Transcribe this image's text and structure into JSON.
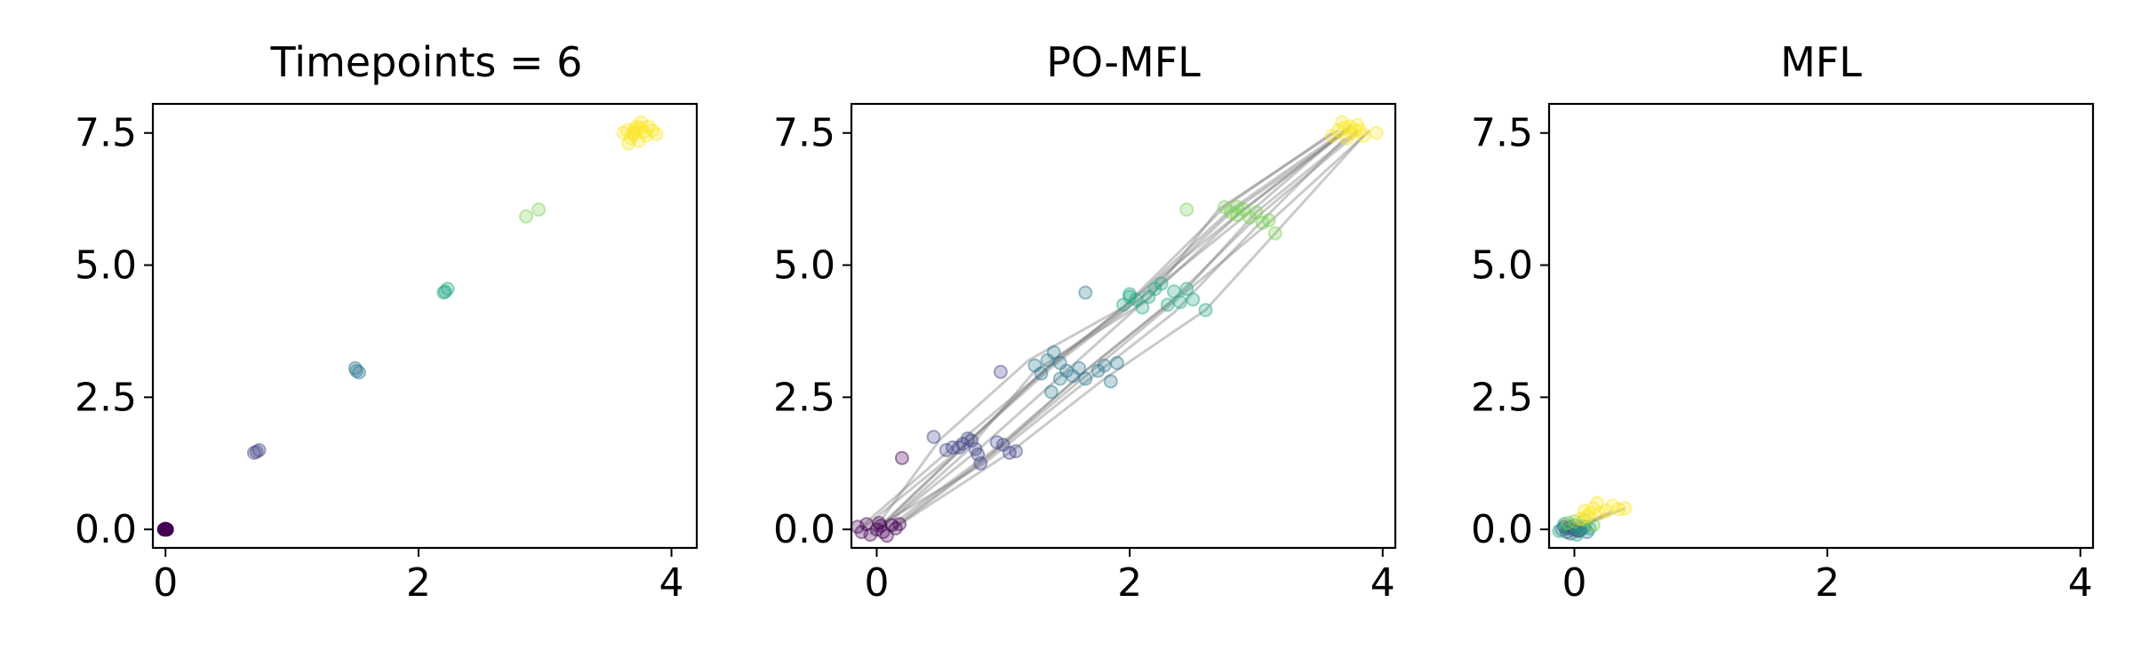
{
  "figure": {
    "background": "#ffffff",
    "trajectory_color": "#808080",
    "timepoint_colors": [
      "#440154",
      "#414487",
      "#2a788e",
      "#22a884",
      "#7ad151",
      "#fde725"
    ]
  },
  "chart_data": [
    {
      "type": "scatter",
      "title": "Timepoints = 6",
      "xlim": [
        -0.1,
        4.2
      ],
      "ylim": [
        -0.35,
        8.05
      ],
      "xticks": [
        0,
        2,
        4
      ],
      "xtick_labels": [
        "0",
        "2",
        "4"
      ],
      "yticks": [
        0.0,
        2.5,
        5.0,
        7.5
      ],
      "ytick_labels": [
        "0.0",
        "2.5",
        "5.0",
        "7.5"
      ],
      "grid": false,
      "series": [
        {
          "timepoint": 0,
          "points": [
            [
              0.0,
              0.0
            ],
            [
              0.01,
              0.0
            ],
            [
              0.0,
              0.01
            ],
            [
              -0.01,
              0.0
            ]
          ]
        },
        {
          "timepoint": 1,
          "points": [
            [
              0.72,
              1.47
            ],
            [
              0.74,
              1.5
            ],
            [
              0.7,
              1.45
            ]
          ]
        },
        {
          "timepoint": 2,
          "points": [
            [
              1.5,
              3.05
            ],
            [
              1.53,
              2.97
            ],
            [
              1.51,
              3.0
            ]
          ]
        },
        {
          "timepoint": 3,
          "points": [
            [
              2.2,
              4.48
            ],
            [
              2.23,
              4.55
            ],
            [
              2.21,
              4.5
            ]
          ]
        },
        {
          "timepoint": 4,
          "points": [
            [
              2.85,
              5.92
            ],
            [
              2.95,
              6.05
            ]
          ]
        },
        {
          "timepoint": 5,
          "points": [
            [
              3.65,
              7.55
            ],
            [
              3.7,
              7.5
            ],
            [
              3.75,
              7.6
            ],
            [
              3.8,
              7.45
            ],
            [
              3.68,
              7.4
            ],
            [
              3.72,
              7.62
            ],
            [
              3.78,
              7.52
            ],
            [
              3.85,
              7.55
            ],
            [
              3.62,
              7.5
            ],
            [
              3.74,
              7.35
            ],
            [
              3.82,
              7.62
            ],
            [
              3.7,
              7.48
            ],
            [
              3.66,
              7.3
            ],
            [
              3.88,
              7.48
            ],
            [
              3.76,
              7.7
            ],
            [
              3.71,
              7.56
            ]
          ]
        }
      ],
      "trajectories": []
    },
    {
      "type": "scatter",
      "title": "PO-MFL",
      "xlim": [
        -0.2,
        4.1
      ],
      "ylim": [
        -0.35,
        8.05
      ],
      "xticks": [
        0,
        2,
        4
      ],
      "xtick_labels": [
        "0",
        "2",
        "4"
      ],
      "yticks": [
        0.0,
        2.5,
        5.0,
        7.5
      ],
      "ytick_labels": [
        "0.0",
        "2.5",
        "5.0",
        "7.5"
      ],
      "grid": false,
      "series": [
        {
          "timepoint": 0,
          "points": [
            [
              -0.15,
              0.05
            ],
            [
              -0.08,
              0.1
            ],
            [
              0.0,
              0.0
            ],
            [
              0.05,
              -0.05
            ],
            [
              0.12,
              0.08
            ],
            [
              0.18,
              0.1
            ],
            [
              -0.05,
              -0.1
            ],
            [
              0.02,
              0.12
            ],
            [
              0.08,
              -0.12
            ],
            [
              -0.12,
              -0.05
            ],
            [
              0.15,
              0.02
            ],
            [
              0.2,
              1.35
            ],
            [
              0.03,
              0.07
            ]
          ]
        },
        {
          "timepoint": 1,
          "points": [
            [
              0.45,
              1.75
            ],
            [
              0.55,
              1.5
            ],
            [
              0.6,
              1.55
            ],
            [
              0.68,
              1.62
            ],
            [
              0.72,
              1.72
            ],
            [
              0.78,
              1.52
            ],
            [
              0.8,
              1.42
            ],
            [
              0.82,
              1.25
            ],
            [
              0.95,
              1.65
            ],
            [
              1.0,
              1.6
            ],
            [
              1.05,
              1.45
            ],
            [
              1.1,
              1.48
            ],
            [
              0.65,
              1.55
            ],
            [
              0.75,
              1.68
            ],
            [
              0.98,
              2.98
            ]
          ]
        },
        {
          "timepoint": 2,
          "points": [
            [
              1.25,
              3.1
            ],
            [
              1.3,
              2.95
            ],
            [
              1.35,
              3.2
            ],
            [
              1.4,
              3.35
            ],
            [
              1.45,
              2.85
            ],
            [
              1.5,
              3.0
            ],
            [
              1.55,
              2.9
            ],
            [
              1.6,
              3.05
            ],
            [
              1.65,
              2.85
            ],
            [
              1.75,
              3.0
            ],
            [
              1.8,
              3.1
            ],
            [
              1.85,
              2.8
            ],
            [
              1.9,
              3.15
            ],
            [
              1.38,
              2.6
            ],
            [
              1.45,
              3.15
            ],
            [
              1.65,
              4.48
            ]
          ]
        },
        {
          "timepoint": 3,
          "points": [
            [
              1.95,
              4.25
            ],
            [
              2.0,
              4.45
            ],
            [
              2.05,
              4.35
            ],
            [
              2.1,
              4.2
            ],
            [
              2.15,
              4.4
            ],
            [
              2.2,
              4.55
            ],
            [
              2.25,
              4.65
            ],
            [
              2.3,
              4.25
            ],
            [
              2.35,
              4.5
            ],
            [
              2.4,
              4.3
            ],
            [
              2.45,
              4.55
            ],
            [
              2.5,
              4.35
            ],
            [
              2.6,
              4.15
            ],
            [
              2.0,
              4.4
            ]
          ]
        },
        {
          "timepoint": 4,
          "points": [
            [
              2.45,
              6.05
            ],
            [
              2.75,
              6.1
            ],
            [
              2.8,
              6.0
            ],
            [
              2.85,
              5.95
            ],
            [
              2.9,
              6.05
            ],
            [
              2.95,
              5.9
            ],
            [
              3.0,
              6.0
            ],
            [
              3.05,
              5.8
            ],
            [
              3.1,
              5.85
            ],
            [
              3.15,
              5.6
            ],
            [
              2.85,
              6.1
            ]
          ]
        },
        {
          "timepoint": 5,
          "points": [
            [
              3.6,
              7.45
            ],
            [
              3.65,
              7.55
            ],
            [
              3.7,
              7.6
            ],
            [
              3.75,
              7.5
            ],
            [
              3.8,
              7.65
            ],
            [
              3.85,
              7.45
            ],
            [
              3.95,
              7.5
            ],
            [
              3.72,
              7.4
            ],
            [
              3.78,
              7.55
            ],
            [
              3.68,
              7.7
            ],
            [
              3.82,
              7.55
            ],
            [
              3.74,
              7.62
            ]
          ]
        }
      ],
      "trajectories": [
        [
          [
            0.0,
            0.0
          ],
          [
            0.7,
            1.6
          ],
          [
            1.4,
            3.1
          ],
          [
            2.1,
            4.4
          ],
          [
            2.8,
            6.0
          ],
          [
            3.7,
            7.5
          ]
        ],
        [
          [
            0.05,
            0.05
          ],
          [
            0.8,
            1.5
          ],
          [
            1.5,
            3.0
          ],
          [
            2.2,
            4.5
          ],
          [
            2.9,
            6.05
          ],
          [
            3.75,
            7.6
          ]
        ],
        [
          [
            -0.1,
            0.1
          ],
          [
            0.6,
            1.55
          ],
          [
            1.3,
            2.95
          ],
          [
            2.0,
            4.3
          ],
          [
            2.85,
            5.95
          ],
          [
            3.65,
            7.45
          ]
        ],
        [
          [
            0.1,
            -0.05
          ],
          [
            0.9,
            1.4
          ],
          [
            1.6,
            2.9
          ],
          [
            2.3,
            4.25
          ],
          [
            3.0,
            5.9
          ],
          [
            3.8,
            7.5
          ]
        ],
        [
          [
            0.15,
            0.08
          ],
          [
            1.0,
            1.6
          ],
          [
            1.7,
            3.0
          ],
          [
            2.4,
            4.4
          ],
          [
            3.1,
            5.8
          ],
          [
            3.9,
            7.55
          ]
        ],
        [
          [
            -0.05,
            -0.1
          ],
          [
            0.5,
            1.7
          ],
          [
            1.2,
            3.2
          ],
          [
            1.95,
            4.2
          ],
          [
            2.75,
            6.1
          ],
          [
            3.6,
            7.5
          ]
        ],
        [
          [
            0.05,
            0.1
          ],
          [
            0.75,
            1.7
          ],
          [
            1.45,
            3.3
          ],
          [
            2.25,
            4.65
          ],
          [
            2.95,
            6.0
          ],
          [
            3.75,
            7.65
          ]
        ],
        [
          [
            0.0,
            0.05
          ],
          [
            0.85,
            1.25
          ],
          [
            1.55,
            2.6
          ],
          [
            2.35,
            4.1
          ],
          [
            3.05,
            5.85
          ],
          [
            3.7,
            7.4
          ]
        ],
        [
          [
            0.12,
            0.0
          ],
          [
            1.05,
            1.45
          ],
          [
            1.8,
            2.85
          ],
          [
            2.6,
            4.15
          ],
          [
            3.15,
            5.6
          ],
          [
            3.85,
            7.45
          ]
        ],
        [
          [
            -0.12,
            0.0
          ],
          [
            0.65,
            1.5
          ],
          [
            1.35,
            3.05
          ],
          [
            2.05,
            4.4
          ],
          [
            2.8,
            6.05
          ],
          [
            3.7,
            7.55
          ]
        ],
        [
          [
            0.08,
            0.02
          ],
          [
            0.95,
            1.55
          ],
          [
            1.7,
            3.1
          ],
          [
            2.45,
            4.55
          ],
          [
            3.0,
            6.0
          ],
          [
            3.8,
            7.55
          ]
        ],
        [
          [
            0.0,
            -0.05
          ],
          [
            0.7,
            1.45
          ],
          [
            1.25,
            3.0
          ],
          [
            2.15,
            4.35
          ],
          [
            2.7,
            6.05
          ],
          [
            3.65,
            7.55
          ]
        ]
      ]
    },
    {
      "type": "scatter",
      "title": "MFL",
      "xlim": [
        -0.2,
        4.1
      ],
      "ylim": [
        -0.35,
        8.05
      ],
      "xticks": [
        0,
        2,
        4
      ],
      "xtick_labels": [
        "0",
        "2",
        "4"
      ],
      "yticks": [
        0.0,
        2.5,
        5.0,
        7.5
      ],
      "ytick_labels": [
        "0.0",
        "2.5",
        "5.0",
        "7.5"
      ],
      "grid": false,
      "series": [
        {
          "timepoint": 0,
          "points": [
            [
              -0.05,
              0.02
            ],
            [
              0.0,
              0.0
            ],
            [
              0.03,
              -0.03
            ],
            [
              -0.08,
              0.05
            ]
          ]
        },
        {
          "timepoint": 1,
          "points": [
            [
              -0.02,
              0.05
            ],
            [
              0.04,
              -0.02
            ],
            [
              -0.06,
              -0.05
            ],
            [
              0.08,
              0.05
            ]
          ]
        },
        {
          "timepoint": 2,
          "points": [
            [
              0.0,
              0.08
            ],
            [
              0.05,
              0.0
            ],
            [
              -0.1,
              0.0
            ],
            [
              0.1,
              -0.05
            ],
            [
              -0.03,
              -0.08
            ]
          ]
        },
        {
          "timepoint": 3,
          "points": [
            [
              -0.08,
              0.1
            ],
            [
              0.02,
              -0.1
            ],
            [
              0.06,
              0.06
            ],
            [
              -0.12,
              -0.03
            ],
            [
              0.12,
              0.02
            ]
          ]
        },
        {
          "timepoint": 4,
          "points": [
            [
              0.0,
              0.15
            ],
            [
              0.15,
              0.08
            ],
            [
              -0.05,
              0.12
            ],
            [
              0.08,
              0.18
            ]
          ]
        },
        {
          "timepoint": 5,
          "points": [
            [
              0.1,
              0.25
            ],
            [
              0.2,
              0.3
            ],
            [
              0.25,
              0.35
            ],
            [
              0.15,
              0.4
            ],
            [
              0.3,
              0.45
            ],
            [
              0.05,
              0.2
            ],
            [
              0.35,
              0.38
            ],
            [
              0.4,
              0.4
            ],
            [
              0.18,
              0.5
            ],
            [
              0.08,
              0.35
            ],
            [
              0.12,
              0.3
            ]
          ]
        }
      ],
      "trajectories": [
        [
          [
            0.0,
            0.0
          ],
          [
            0.02,
            0.05
          ],
          [
            0.05,
            0.08
          ],
          [
            0.1,
            0.12
          ],
          [
            0.2,
            0.2
          ],
          [
            0.4,
            0.4
          ]
        ],
        [
          [
            -0.05,
            0.0
          ],
          [
            0.0,
            0.02
          ],
          [
            0.02,
            0.05
          ],
          [
            0.05,
            0.1
          ],
          [
            0.12,
            0.15
          ],
          [
            0.25,
            0.3
          ]
        ],
        [
          [
            0.02,
            -0.02
          ],
          [
            0.05,
            0.0
          ],
          [
            0.08,
            0.05
          ],
          [
            0.1,
            0.08
          ],
          [
            0.15,
            0.15
          ],
          [
            0.3,
            0.35
          ]
        ]
      ]
    }
  ]
}
